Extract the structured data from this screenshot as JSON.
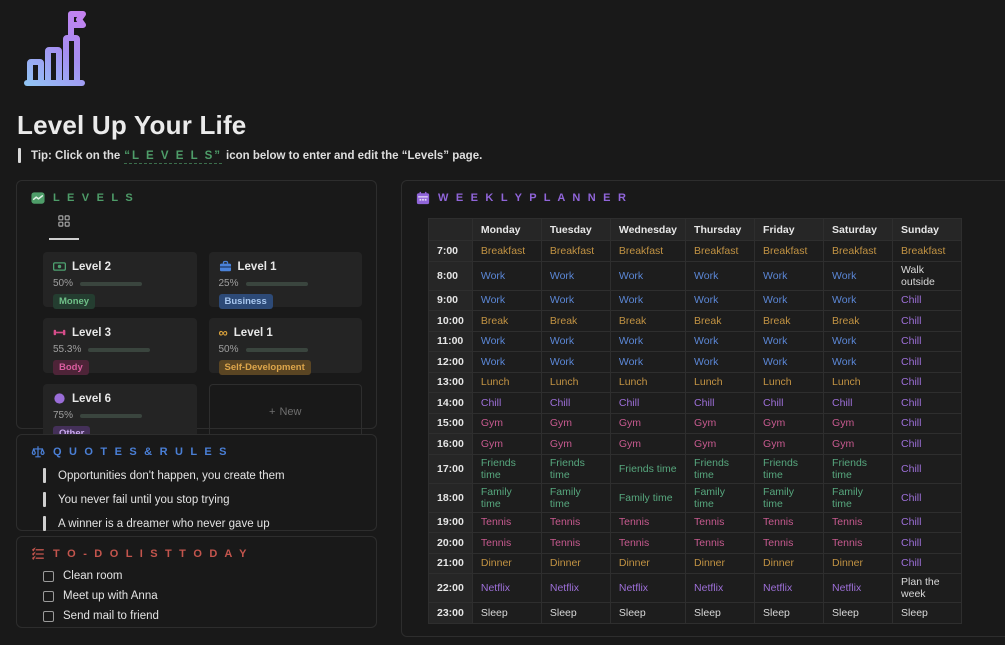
{
  "page": {
    "title": "Level Up Your Life",
    "tip": {
      "prefix": "Tip: Click on the",
      "highlight": "“L E V E L S”",
      "suffix": "icon below to enter and edit the “Levels” page."
    }
  },
  "accent_colors": {
    "green": "#4e9d69",
    "blue": "#4a7fd6",
    "red": "#c4554d",
    "purple": "#9065d9"
  },
  "levels": {
    "title": "L E V E L S",
    "view": "gallery",
    "cards": [
      {
        "icon": "money-icon",
        "icon_color": "#4da06f",
        "title": "Level 2",
        "percent": "50%",
        "progress": 50,
        "tag": "Money",
        "tag_bg": "#243d30",
        "tag_color": "#6fc088"
      },
      {
        "icon": "briefcase-icon",
        "icon_color": "#4a82d9",
        "title": "Level 1",
        "percent": "25%",
        "progress": 25,
        "tag": "Business",
        "tag_bg": "#2d4a77",
        "tag_color": "#a8c7ef"
      },
      {
        "icon": "dumbbell-icon",
        "icon_color": "#d64d8a",
        "title": "Level 3",
        "percent": "55.3%",
        "progress": 55.3,
        "tag": "Body",
        "tag_bg": "#4e2438",
        "tag_color": "#d95d9f"
      },
      {
        "icon": "infinity-icon",
        "icon_color": "#d9a13c",
        "title": "Level 1",
        "percent": "50%",
        "progress": 50,
        "tag": "Self-Development",
        "tag_bg": "#5a4523",
        "tag_color": "#dca54b"
      },
      {
        "icon": "circle-icon",
        "icon_color": "#9a6dd8",
        "title": "Level 6",
        "percent": "75%",
        "progress": 75,
        "tag": "Other",
        "tag_bg": "#443059",
        "tag_color": "#c9a8ee"
      }
    ],
    "new_label": "New"
  },
  "quotes": {
    "title": "Q U O T E S & R U L E S",
    "items": [
      "Opportunities don't happen, you create them",
      "You never fail until you stop trying",
      "A winner is a dreamer who never gave up"
    ]
  },
  "todo": {
    "title": "T O - D O  L I S T  T O D A Y",
    "items": [
      {
        "label": "Clean room",
        "checked": false
      },
      {
        "label": "Meet up with Anna",
        "checked": false
      },
      {
        "label": "Send mail to friend",
        "checked": false
      }
    ]
  },
  "planner": {
    "title": "W E E K L Y  P L A N N E R",
    "columns": [
      "",
      "Monday",
      "Tuesday",
      "Wednesday",
      "Thursday",
      "Friday",
      "Saturday",
      "Sunday"
    ],
    "label_colors": {
      "Breakfast": "#c29343",
      "Break": "#c29343",
      "Lunch": "#c29343",
      "Dinner": "#c29343",
      "Work": "#5b87d6",
      "Netflix": "#9d6fd8",
      "Chill": "#9d6fd8",
      "Gym": "#c75a8f",
      "Tennis": "#c75a8f",
      "Friends time": "#57a77e",
      "Family time": "#57a77e",
      "Sleep": "#d9d9d9",
      "Walk outside": "#d9d9d9",
      "Plan the week": "#d9d9d9"
    },
    "rows": [
      {
        "time": "7:00",
        "cells": [
          "Breakfast",
          "Breakfast",
          "Breakfast",
          "Breakfast",
          "Breakfast",
          "Breakfast",
          "Breakfast"
        ]
      },
      {
        "time": "8:00",
        "cells": [
          "Work",
          "Work",
          "Work",
          "Work",
          "Work",
          "Work",
          "Walk outside"
        ]
      },
      {
        "time": "9:00",
        "cells": [
          "Work",
          "Work",
          "Work",
          "Work",
          "Work",
          "Work",
          "Chill"
        ]
      },
      {
        "time": "10:00",
        "cells": [
          "Break",
          "Break",
          "Break",
          "Break",
          "Break",
          "Break",
          "Chill"
        ]
      },
      {
        "time": "11:00",
        "cells": [
          "Work",
          "Work",
          "Work",
          "Work",
          "Work",
          "Work",
          "Chill"
        ]
      },
      {
        "time": "12:00",
        "cells": [
          "Work",
          "Work",
          "Work",
          "Work",
          "Work",
          "Work",
          "Chill"
        ]
      },
      {
        "time": "13:00",
        "cells": [
          "Lunch",
          "Lunch",
          "Lunch",
          "Lunch",
          "Lunch",
          "Lunch",
          "Chill"
        ]
      },
      {
        "time": "14:00",
        "cells": [
          "Chill",
          "Chill",
          "Chill",
          "Chill",
          "Chill",
          "Chill",
          "Chill"
        ]
      },
      {
        "time": "15:00",
        "cells": [
          "Gym",
          "Gym",
          "Gym",
          "Gym",
          "Gym",
          "Gym",
          "Chill"
        ]
      },
      {
        "time": "16:00",
        "cells": [
          "Gym",
          "Gym",
          "Gym",
          "Gym",
          "Gym",
          "Gym",
          "Chill"
        ]
      },
      {
        "time": "17:00",
        "cells": [
          "Friends time",
          "Friends time",
          "Friends time",
          "Friends time",
          "Friends time",
          "Friends time",
          "Chill"
        ]
      },
      {
        "time": "18:00",
        "cells": [
          "Family time",
          "Family time",
          "Family time",
          "Family time",
          "Family time",
          "Family time",
          "Chill"
        ]
      },
      {
        "time": "19:00",
        "cells": [
          "Tennis",
          "Tennis",
          "Tennis",
          "Tennis",
          "Tennis",
          "Tennis",
          "Chill"
        ]
      },
      {
        "time": "20:00",
        "cells": [
          "Tennis",
          "Tennis",
          "Tennis",
          "Tennis",
          "Tennis",
          "Tennis",
          "Chill"
        ]
      },
      {
        "time": "21:00",
        "cells": [
          "Dinner",
          "Dinner",
          "Dinner",
          "Dinner",
          "Dinner",
          "Dinner",
          "Chill"
        ]
      },
      {
        "time": "22:00",
        "cells": [
          "Netflix",
          "Netflix",
          "Netflix",
          "Netflix",
          "Netflix",
          "Netflix",
          "Plan the week"
        ]
      },
      {
        "time": "23:00",
        "cells": [
          "Sleep",
          "Sleep",
          "Sleep",
          "Sleep",
          "Sleep",
          "Sleep",
          "Sleep"
        ]
      }
    ]
  }
}
